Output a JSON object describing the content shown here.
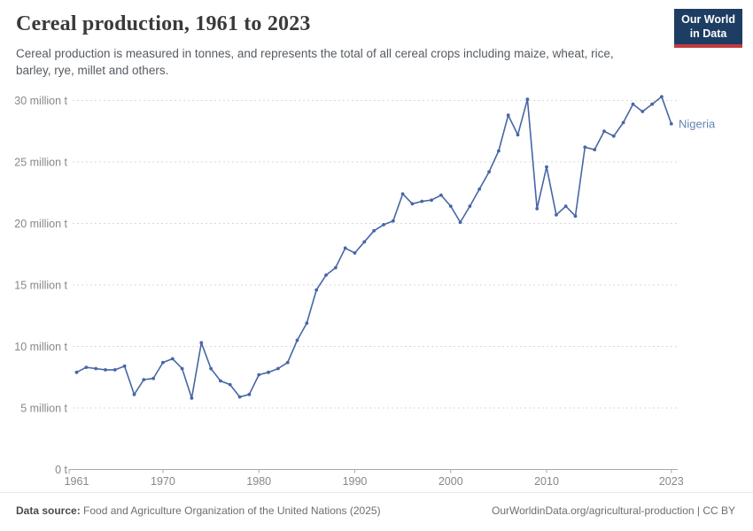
{
  "header": {
    "title": "Cereal production, 1961 to 2023"
  },
  "subtitle": "Cereal production is measured in tonnes, and represents the total of all cereal crops including maize, wheat, rice, barley, rye, millet and others.",
  "logo": {
    "line1": "Our World",
    "line2": "in Data",
    "bg_color": "#1d3d63",
    "accent_color": "#c23b3f"
  },
  "chart_data": {
    "type": "line",
    "title": "Cereal production, 1961 to 2023",
    "xlabel": "",
    "ylabel": "",
    "unit": "million tonnes",
    "grid": "horizontal dashed",
    "legend_position": "end-of-line label",
    "xlim": [
      1961,
      2023
    ],
    "ylim_million_t": [
      0,
      30
    ],
    "x": [
      1961,
      1962,
      1963,
      1964,
      1965,
      1966,
      1967,
      1968,
      1969,
      1970,
      1971,
      1972,
      1973,
      1974,
      1975,
      1976,
      1977,
      1978,
      1979,
      1980,
      1981,
      1982,
      1983,
      1984,
      1985,
      1986,
      1987,
      1988,
      1989,
      1990,
      1991,
      1992,
      1993,
      1994,
      1995,
      1996,
      1997,
      1998,
      1999,
      2000,
      2001,
      2002,
      2003,
      2004,
      2005,
      2006,
      2007,
      2008,
      2009,
      2010,
      2011,
      2012,
      2013,
      2014,
      2015,
      2016,
      2017,
      2018,
      2019,
      2020,
      2021,
      2022,
      2023
    ],
    "series": [
      {
        "name": "Nigeria",
        "color": "#4766a4",
        "values_million_t": [
          7.9,
          8.3,
          8.2,
          8.1,
          8.1,
          8.4,
          6.1,
          7.3,
          7.4,
          8.7,
          9.0,
          8.2,
          5.8,
          10.3,
          8.2,
          7.2,
          6.9,
          5.9,
          6.1,
          7.7,
          7.9,
          8.2,
          8.7,
          10.5,
          11.9,
          14.6,
          15.8,
          16.4,
          18.0,
          17.6,
          18.5,
          19.4,
          19.9,
          20.2,
          22.4,
          21.6,
          21.8,
          21.9,
          22.3,
          21.4,
          20.1,
          21.4,
          22.8,
          24.2,
          25.9,
          28.8,
          27.2,
          30.1,
          21.2,
          24.6,
          20.7,
          21.4,
          20.6,
          26.2,
          26.0,
          27.5,
          27.1,
          28.2,
          29.7,
          29.1,
          29.7,
          30.3,
          28.1
        ]
      }
    ],
    "yticks": [
      {
        "value": 0,
        "label": "0 t"
      },
      {
        "value": 5,
        "label": "5 million t"
      },
      {
        "value": 10,
        "label": "10 million t"
      },
      {
        "value": 15,
        "label": "15 million t"
      },
      {
        "value": 20,
        "label": "20 million t"
      },
      {
        "value": 25,
        "label": "25 million t"
      },
      {
        "value": 30,
        "label": "30 million t"
      }
    ],
    "xticks": [
      1961,
      1970,
      1980,
      1990,
      2000,
      2010,
      2023
    ],
    "grid_color": "#d9d9d9",
    "axis_color": "#a8a8a8",
    "tick_label_color": "#878787"
  },
  "footer": {
    "datasource_label": "Data source:",
    "datasource_text": " Food and Agriculture Organization of the United Nations (2025)",
    "attribution": "OurWorldinData.org/agricultural-production | CC BY"
  }
}
